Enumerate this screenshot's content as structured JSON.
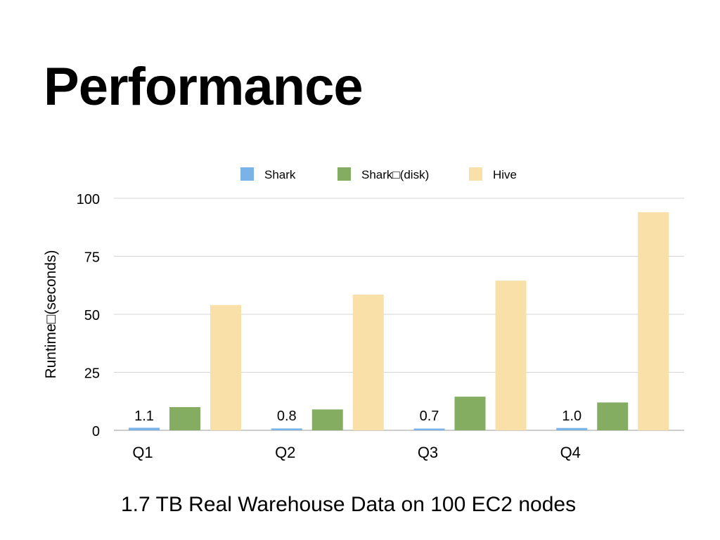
{
  "slide": {
    "title": "Performance",
    "caption": "1.7 TB Real Warehouse Data on 100 EC2 nodes"
  },
  "chart_data": {
    "type": "bar",
    "categories": [
      "Q1",
      "Q2",
      "Q3",
      "Q4"
    ],
    "series": [
      {
        "name": "Shark",
        "values": [
          1.1,
          0.8,
          0.7,
          1.0
        ],
        "color": "#7ab3e8",
        "data_labels": [
          "1.1",
          "0.8",
          "0.7",
          "1.0"
        ]
      },
      {
        "name": "Shark□(disk)",
        "values": [
          10,
          9,
          14.5,
          12
        ],
        "color": "#84ad62"
      },
      {
        "name": "Hive",
        "values": [
          54,
          58.5,
          64.5,
          94
        ],
        "color": "#f9dfa8"
      }
    ],
    "ylabel": "Runtime□(seconds)",
    "ylim": [
      0,
      100
    ],
    "yticks": [
      0,
      25,
      50,
      75,
      100
    ],
    "grid": true,
    "legend": "top-center"
  }
}
